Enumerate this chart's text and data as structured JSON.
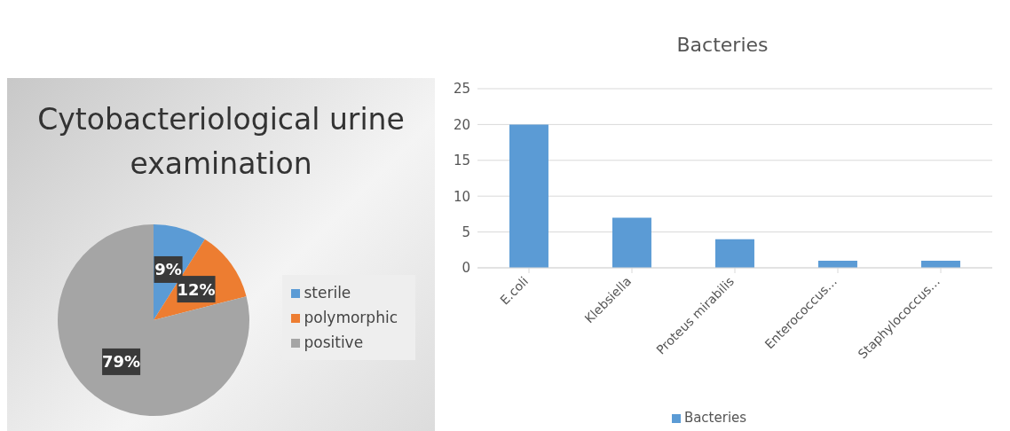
{
  "chart_data": [
    {
      "type": "pie",
      "title": "Cytobacteriological urine examination",
      "categories": [
        "sterile",
        "polymorphic",
        "positive"
      ],
      "values": [
        9,
        12,
        79
      ],
      "colors": [
        "#5b9bd5",
        "#ed7d31",
        "#a5a5a5"
      ],
      "value_labels": [
        "9%",
        "12%",
        "79%"
      ],
      "legend": "right"
    },
    {
      "type": "bar",
      "title": "Bacteries",
      "categories": [
        "E.coli",
        "Klebsiella",
        "Proteus mirabilis",
        "Enterococcus…",
        "Staphylococcus…"
      ],
      "series": [
        {
          "name": "Bacteries",
          "color": "#5b9bd5",
          "values": [
            20,
            7,
            4,
            1,
            1
          ]
        }
      ],
      "ylim": [
        0,
        25
      ],
      "yticks": [
        0,
        5,
        10,
        15,
        20,
        25
      ],
      "grid": "y",
      "legend": "bottom"
    }
  ]
}
